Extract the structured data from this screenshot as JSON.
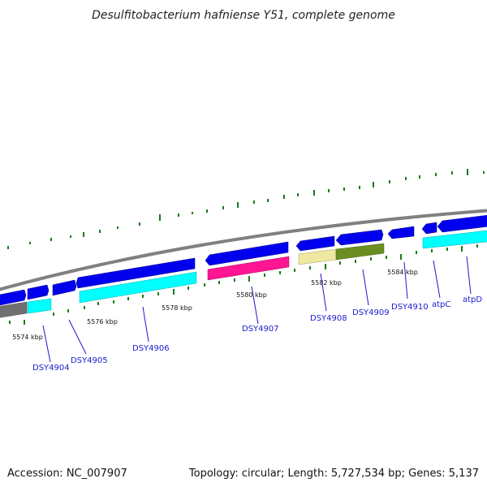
{
  "title": "Desulfitobacterium hafniense Y51, complete genome",
  "accession": "Accession: NC_007907",
  "topology": "Topology: circular; Length: 5,727,534 bp; Genes: 5,137",
  "colors": {
    "backbone": "#808080",
    "gene_forward": "#0000ee",
    "gc_tick": "#1a7a1a",
    "label": "#1a1acc",
    "cyan": "#00ffff",
    "magenta": "#ff1493",
    "khaki": "#eee8a0",
    "olive": "#6b8e23",
    "gray": "#707070"
  },
  "kbp_labels": [
    "5574 kbp",
    "5576 kbp",
    "5578 kbp",
    "5580 kbp",
    "5582 kbp",
    "5584 kbp"
  ],
  "gene_labels": [
    "DSY4904",
    "DSY4905",
    "DSY4906",
    "DSY4907",
    "DSY4908",
    "DSY4909",
    "DSY4910",
    "atpC",
    "atpD"
  ]
}
